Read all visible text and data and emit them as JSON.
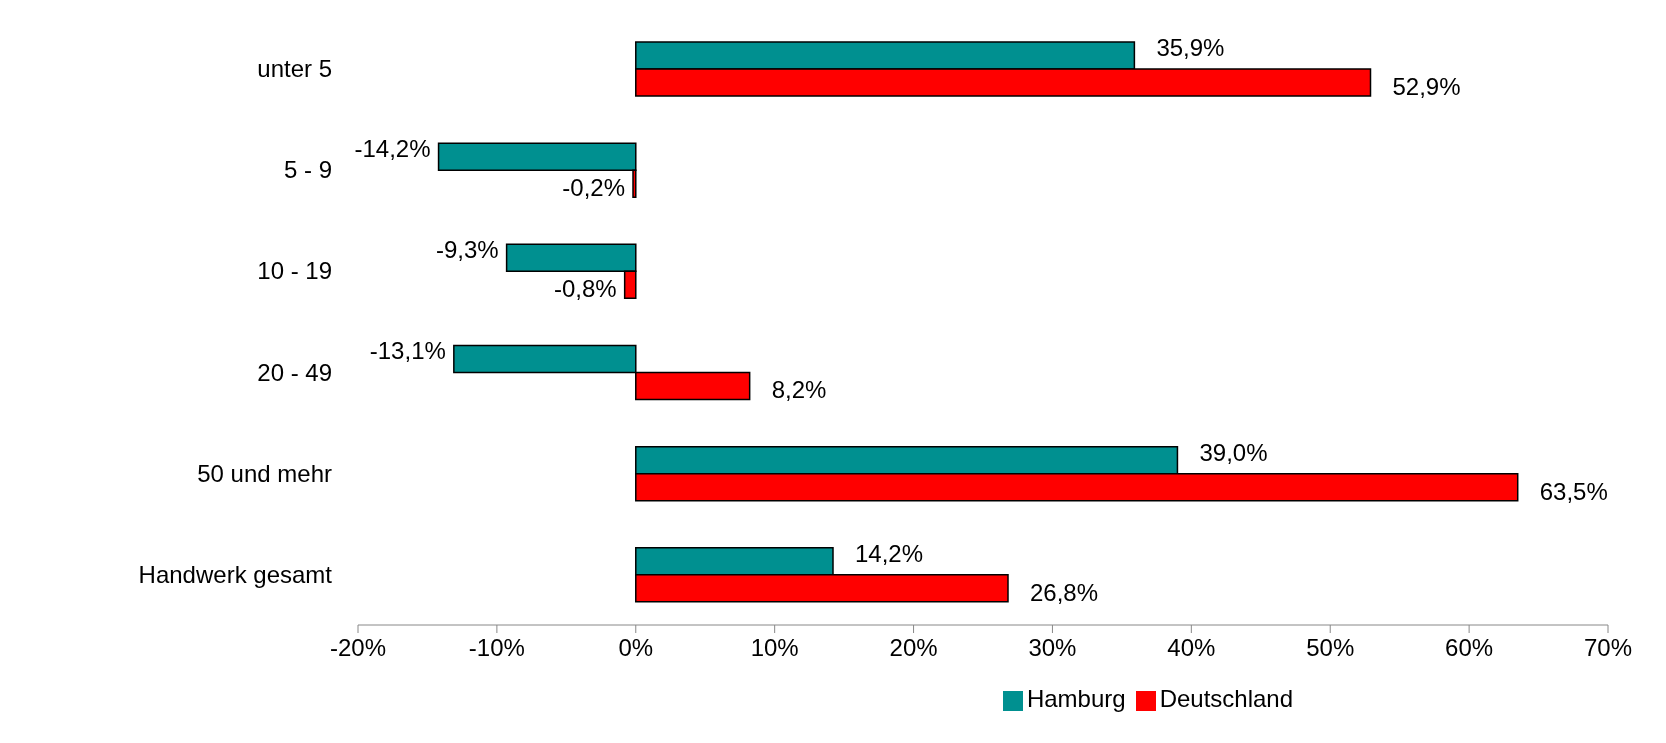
{
  "chart_data": {
    "type": "bar",
    "orientation": "horizontal",
    "categories": [
      "unter 5",
      "5 - 9",
      "10 - 19",
      "20 - 49",
      "50 und mehr",
      "Handwerk gesamt"
    ],
    "series": [
      {
        "name": "Hamburg",
        "color": "#009090",
        "values": [
          35.9,
          -14.2,
          -9.3,
          -13.1,
          39.0,
          14.2
        ],
        "value_labels": [
          "35,9%",
          "-14,2%",
          "-9,3%",
          "-13,1%",
          "39,0%",
          "14,2%"
        ]
      },
      {
        "name": "Deutschland",
        "color": "#ff0000",
        "values": [
          52.9,
          -0.2,
          -0.8,
          8.2,
          63.5,
          26.8
        ],
        "value_labels": [
          "52,9%",
          "-0,2%",
          "-0,8%",
          "8,2%",
          "63,5%",
          "26,8%"
        ]
      }
    ],
    "xlim": [
      -20,
      70
    ],
    "xticks": [
      {
        "value": -20,
        "label": "-20%"
      },
      {
        "value": -10,
        "label": "-10%"
      },
      {
        "value": 0,
        "label": "0%"
      },
      {
        "value": 10,
        "label": "10%"
      },
      {
        "value": 20,
        "label": "20%"
      },
      {
        "value": 30,
        "label": "30%"
      },
      {
        "value": 40,
        "label": "40%"
      },
      {
        "value": 50,
        "label": "50%"
      },
      {
        "value": 60,
        "label": "60%"
      },
      {
        "value": 70,
        "label": "70%"
      }
    ],
    "grid": false,
    "legend": "bottom"
  }
}
